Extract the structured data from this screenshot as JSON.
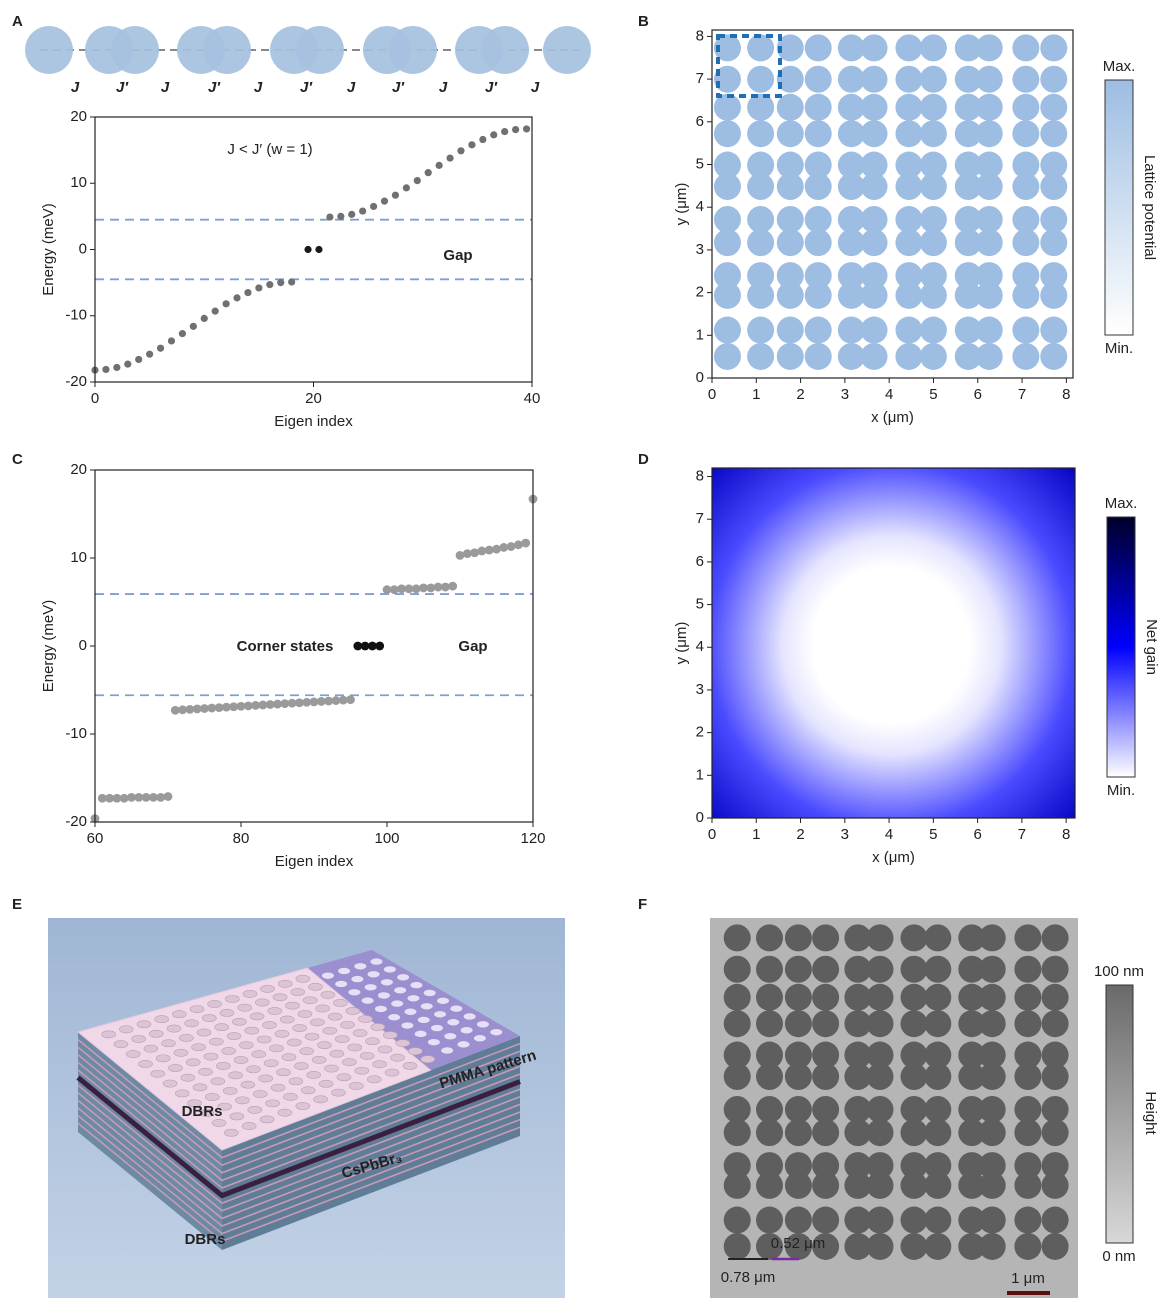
{
  "panel_labels": [
    "A",
    "B",
    "C",
    "D",
    "E",
    "F"
  ],
  "chain": {
    "couplings": [
      "J",
      "J′",
      "J",
      "J′",
      "J",
      "J′",
      "J",
      "J′",
      "J",
      "J′",
      "J"
    ]
  },
  "chart_data": [
    {
      "type": "scatter",
      "xlabel": "Eigen index",
      "ylabel": "Energy (meV)",
      "xlim": [
        0,
        40
      ],
      "ylim": [
        -20,
        20
      ],
      "xticks": [
        0,
        20,
        40
      ],
      "yticks": [
        -20,
        -10,
        0,
        10,
        20
      ],
      "annotation": "J < J′ (w = 1)",
      "gap_label": "Gap",
      "hlines": [
        4.5,
        -4.5
      ],
      "hline_color": "#7f9fd4",
      "series": [
        {
          "color": "#707070",
          "x": [
            0,
            1,
            2,
            3,
            4,
            5,
            6,
            7,
            8,
            9,
            10,
            11,
            12,
            13,
            14,
            15,
            16,
            17,
            18,
            21.5,
            22.5,
            23.5,
            24.5,
            25.5,
            26.5,
            27.5,
            28.5,
            29.5,
            30.5,
            31.5,
            32.5,
            33.5,
            34.5,
            35.5,
            36.5,
            37.5,
            38.5,
            39.5
          ],
          "values": [
            -18.2,
            -18.1,
            -17.8,
            -17.3,
            -16.6,
            -15.8,
            -14.9,
            -13.8,
            -12.7,
            -11.6,
            -10.4,
            -9.3,
            -8.2,
            -7.3,
            -6.5,
            -5.8,
            -5.3,
            -5.0,
            -4.9,
            4.9,
            5.0,
            5.3,
            5.8,
            6.5,
            7.3,
            8.2,
            9.3,
            10.4,
            11.6,
            12.7,
            13.8,
            14.9,
            15.8,
            16.6,
            17.3,
            17.8,
            18.1,
            18.2
          ]
        },
        {
          "color": "#1a1a1a",
          "x": [
            19.5,
            20.5
          ],
          "values": [
            0,
            0
          ]
        }
      ]
    },
    {
      "type": "heatmap",
      "xlabel": "x (μm)",
      "ylabel": "y (μm)",
      "xlim": [
        0,
        8.15
      ],
      "ylim": [
        0,
        8.15
      ],
      "xticks": [
        0,
        1,
        2,
        3,
        4,
        5,
        6,
        7,
        8
      ],
      "yticks": [
        0,
        1,
        2,
        3,
        4,
        5,
        6,
        7,
        8
      ],
      "colorbar": {
        "max": "Max.",
        "min": "Min.",
        "label": "Lattice potential"
      },
      "colormap": [
        "#ffffff",
        "#9dbde3"
      ]
    },
    {
      "type": "scatter",
      "xlabel": "Eigen index",
      "ylabel": "Energy (meV)",
      "xlim": [
        60,
        120
      ],
      "ylim": [
        -20,
        20
      ],
      "xticks": [
        60,
        80,
        100,
        120
      ],
      "yticks": [
        -20,
        -10,
        0,
        10,
        20
      ],
      "annotation": "Corner states",
      "gap_label": "Gap",
      "hlines": [
        5.9,
        -5.6
      ],
      "hline_color": "#7f9fd4",
      "series": [
        {
          "color": "#9a9a9a",
          "x": [
            60,
            61,
            62,
            63,
            64,
            65,
            66,
            67,
            68,
            69,
            70,
            71,
            72,
            73,
            74,
            75,
            76,
            77,
            78,
            79,
            80,
            81,
            82,
            83,
            84,
            85,
            86,
            87,
            88,
            89,
            90,
            91,
            92,
            93,
            94,
            95,
            100,
            101,
            102,
            103,
            104,
            105,
            106,
            107,
            108,
            109,
            110,
            111,
            112,
            113,
            114,
            115,
            116,
            117,
            118,
            119,
            120
          ],
          "values": [
            -19.6,
            -17.3,
            -17.3,
            -17.3,
            -17.3,
            -17.2,
            -17.2,
            -17.2,
            -17.2,
            -17.2,
            -17.1,
            -7.3,
            -7.25,
            -7.2,
            -7.15,
            -7.1,
            -7.05,
            -7.0,
            -6.95,
            -6.9,
            -6.85,
            -6.8,
            -6.75,
            -6.7,
            -6.65,
            -6.6,
            -6.55,
            -6.5,
            -6.45,
            -6.4,
            -6.35,
            -6.3,
            -6.25,
            -6.2,
            -6.15,
            -6.1,
            6.4,
            6.4,
            6.5,
            6.5,
            6.5,
            6.6,
            6.6,
            6.7,
            6.7,
            6.8,
            10.3,
            10.5,
            10.6,
            10.8,
            10.9,
            11.0,
            11.2,
            11.3,
            11.5,
            11.7,
            16.7
          ]
        },
        {
          "color": "#111111",
          "x": [
            96,
            97,
            98,
            99
          ],
          "values": [
            0,
            0,
            0,
            0
          ]
        }
      ]
    },
    {
      "type": "heatmap",
      "xlabel": "x (μm)",
      "ylabel": "y (μm)",
      "xlim": [
        0,
        8.2
      ],
      "ylim": [
        0,
        8.2
      ],
      "xticks": [
        0,
        1,
        2,
        3,
        4,
        5,
        6,
        7,
        8
      ],
      "yticks": [
        0,
        1,
        2,
        3,
        4,
        5,
        6,
        7,
        8
      ],
      "colorbar": {
        "max": "Max.",
        "min": "Min.",
        "label": "Net gain"
      },
      "colormap": [
        "#ffffff",
        "#0000ff",
        "#00002a"
      ]
    }
  ],
  "illustration": {
    "labels": [
      "DBRs",
      "PMMA pattern",
      "CsPbBr₃",
      "DBRs"
    ]
  },
  "sem": {
    "colorbar_max": "100 nm",
    "colorbar_min": "0 nm",
    "colorbar_label": "Height",
    "spacing_labels": [
      "0.52 μm",
      "0.78 μm"
    ],
    "scale_bar": "1 μm"
  }
}
